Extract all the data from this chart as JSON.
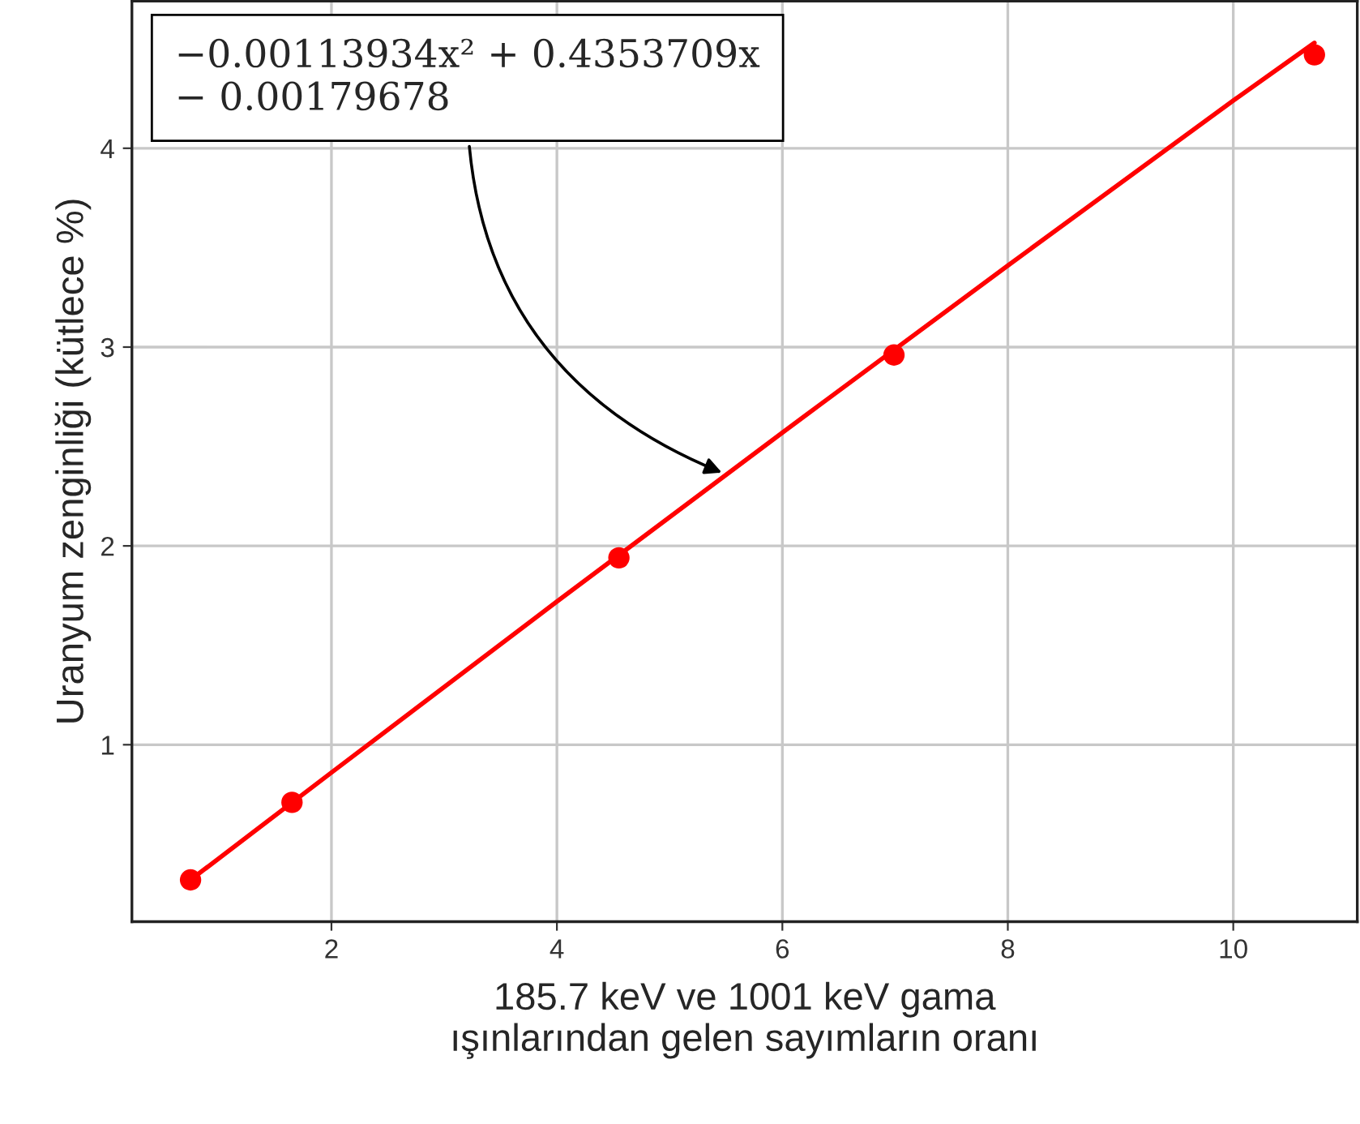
{
  "chart_data": {
    "type": "scatter",
    "xlabel": "185.7 keV ve 1001 keV gama\nışınlarından gelen sayımların oranı",
    "ylabel": "Uranyum zenginliği (kütlece %)",
    "series": [
      {
        "color": "#ff0000",
        "marker": "circle",
        "x": [
          0.75,
          1.65,
          4.55,
          6.99,
          10.72
        ],
        "values": [
          0.32,
          0.71,
          1.94,
          2.96,
          4.47
        ]
      },
      {
        "type": "line",
        "color": "#ff0000",
        "marker": "none",
        "line_style": "solid",
        "x": [
          0.75,
          2,
          4,
          6,
          8,
          10,
          10.72
        ],
        "values": [
          0.32,
          0.86,
          1.72,
          2.57,
          3.41,
          4.24,
          4.53
        ]
      }
    ],
    "annotations": [
      {
        "text": "−0.00113934x² + 0.4353709x\n− 0.00179678",
        "x": 5.5,
        "y": 2.36
      }
    ],
    "xlim": [
      0.23,
      11.1
    ],
    "ylim": [
      0.11,
      4.74
    ],
    "xticks": [
      2,
      4,
      6,
      8,
      10
    ],
    "yticks": [
      1,
      2,
      3,
      4
    ],
    "grid": true,
    "legend": false
  }
}
